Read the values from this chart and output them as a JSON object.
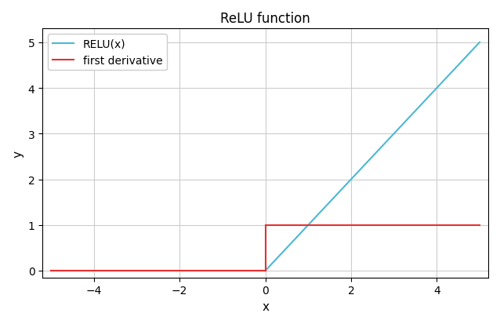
{
  "title": "ReLU function",
  "xlabel": "x",
  "ylabel": "y",
  "xlim": [
    -5.2,
    5.2
  ],
  "ylim": [
    -0.15,
    5.3
  ],
  "relu_color": "#4cb8d4",
  "deriv_color": "#e63232",
  "relu_label": "RELU(x)",
  "deriv_label": "first derivative",
  "line_width": 1.5,
  "x_start": -5,
  "x_end": 5,
  "num_points": 1000,
  "grid_color": "#cccccc",
  "ax_background_color": "#ffffff",
  "fig_background_color": "#ffffff",
  "xticks": [
    -4,
    -2,
    0,
    2,
    4
  ],
  "yticks": [
    0,
    1,
    2,
    3,
    4,
    5
  ],
  "title_fontsize": 12,
  "label_fontsize": 11,
  "legend_fontsize": 10
}
